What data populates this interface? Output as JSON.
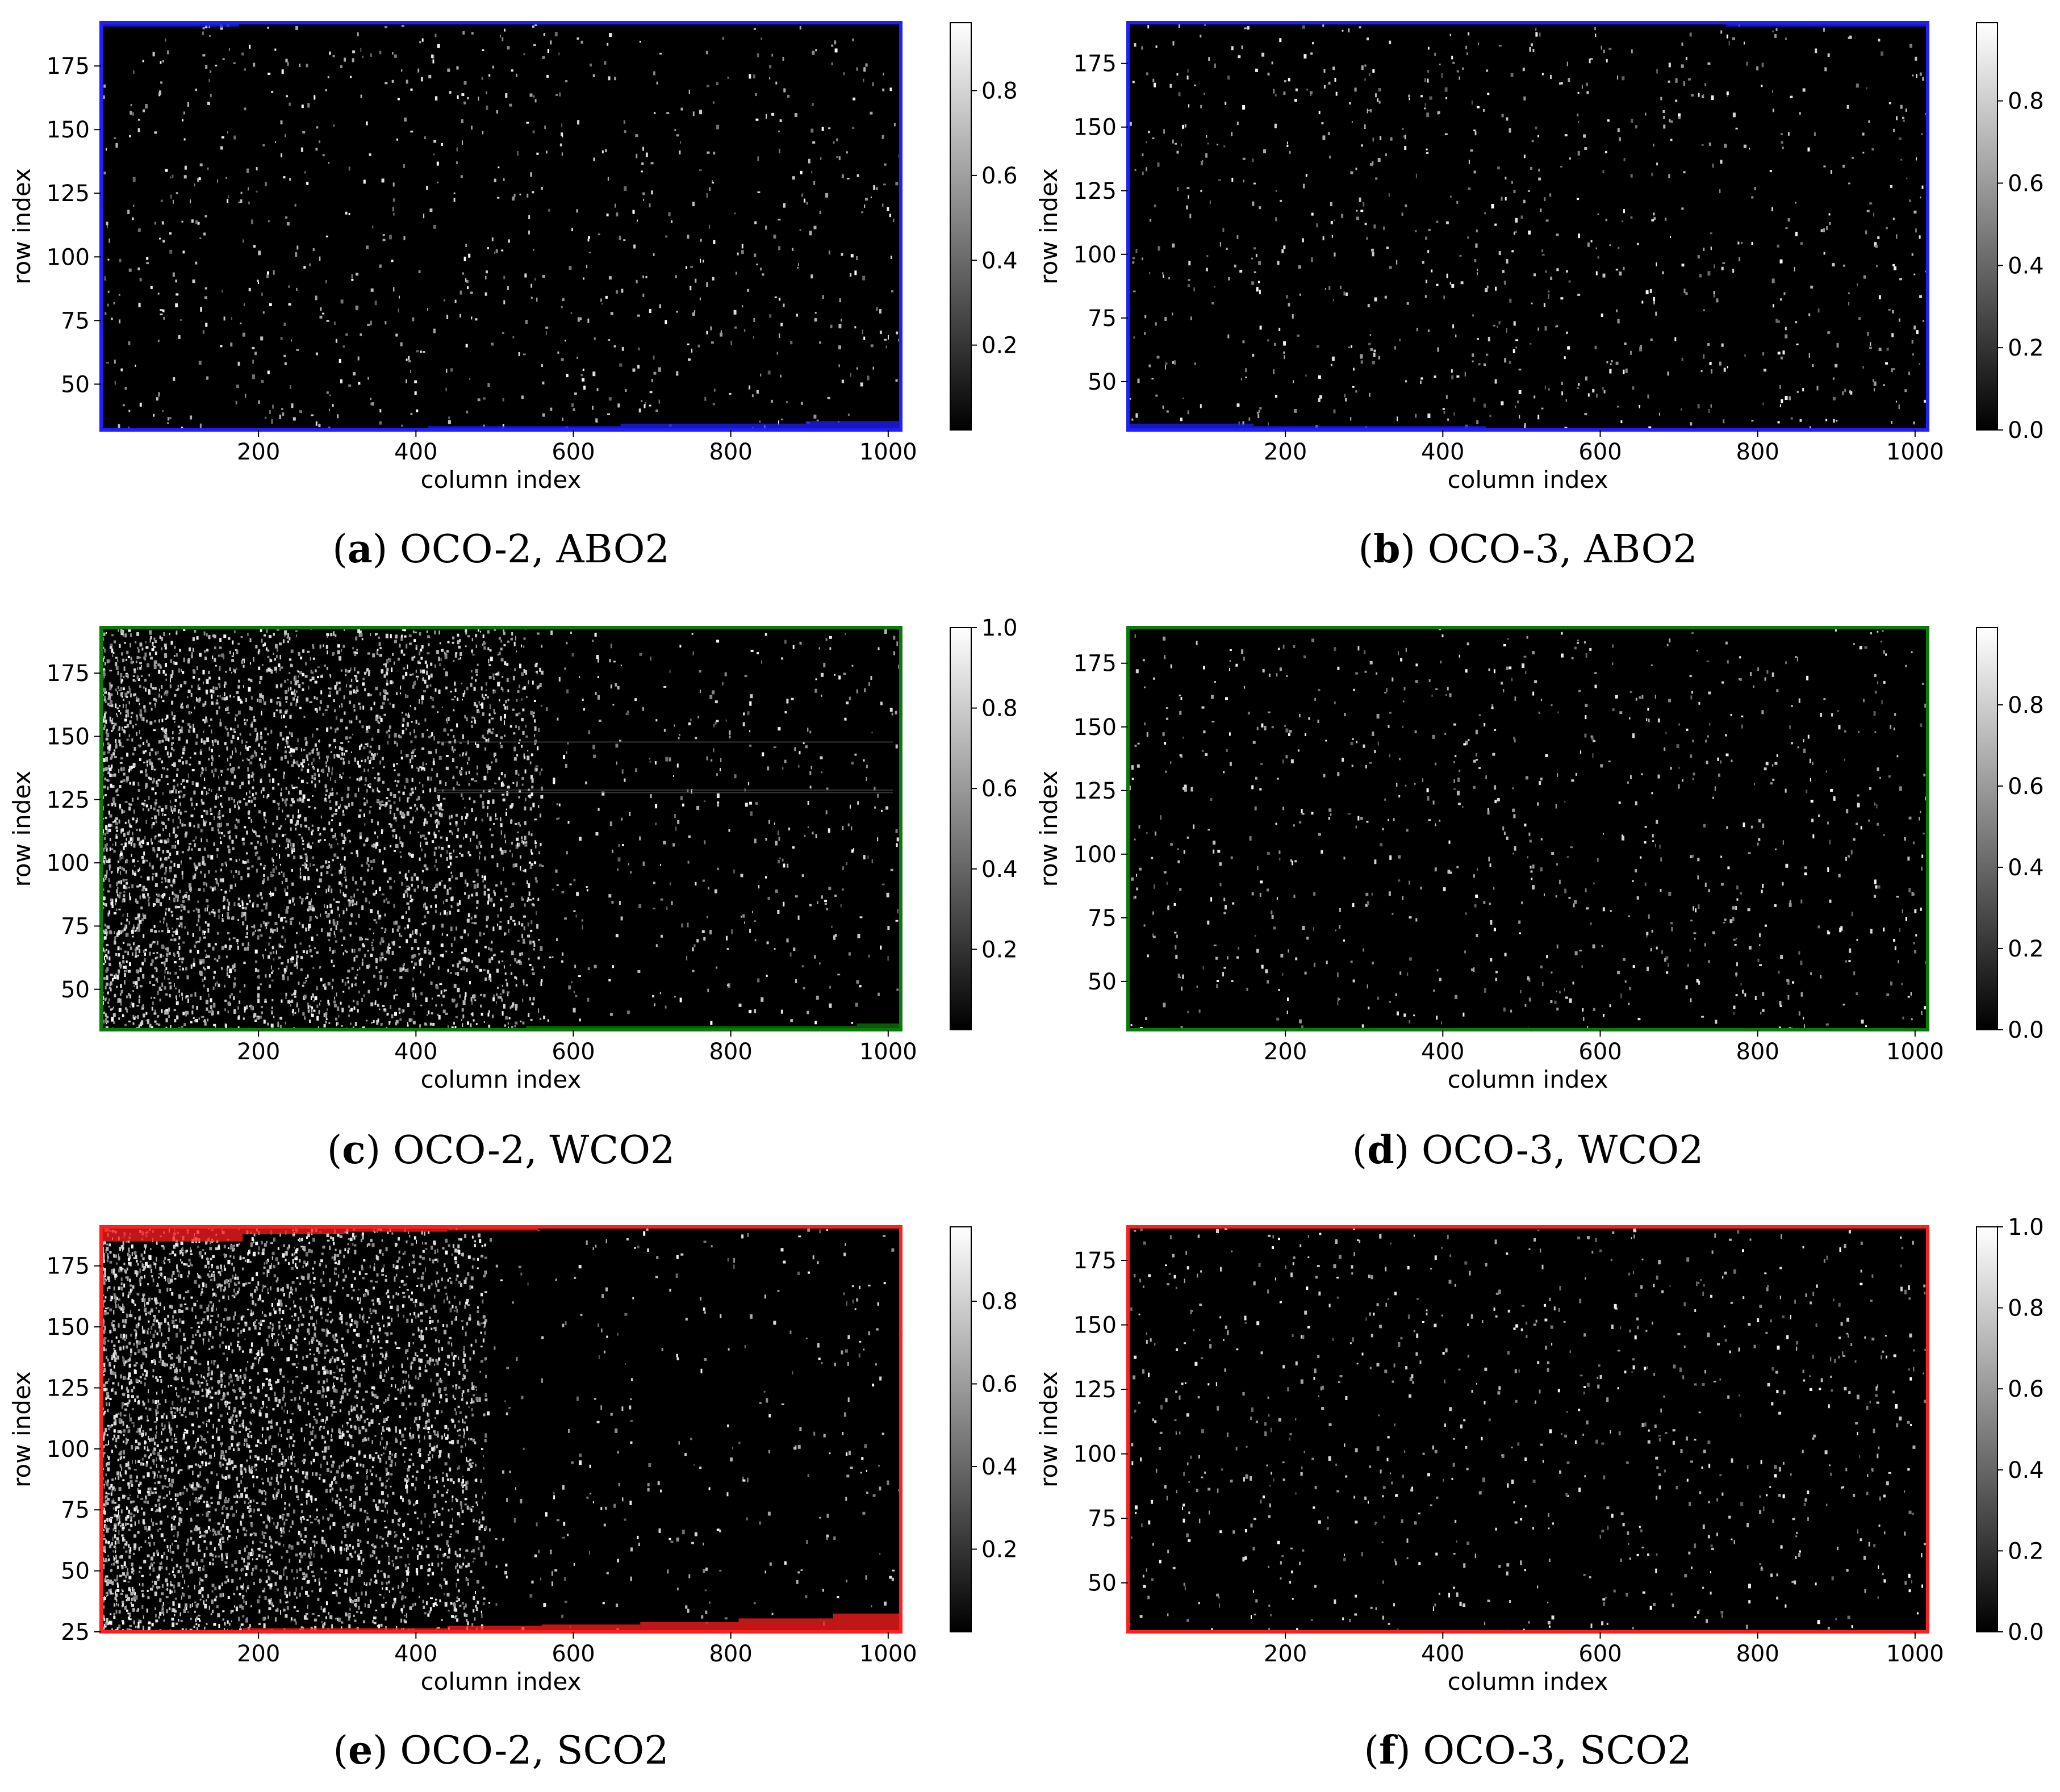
{
  "figure": {
    "panels": [
      {
        "caption_letter": "a",
        "caption_text": "OCO-2, ABO2",
        "frame_color": "#1f1fff",
        "xlabel": "column index",
        "ylabel": "row index",
        "xlim": [
          0,
          1016
        ],
        "ylim": [
          32,
          192
        ],
        "xticks": [
          200,
          400,
          600,
          800,
          1000
        ],
        "yticks": [
          50,
          75,
          100,
          125,
          150,
          175
        ],
        "colorbar": {
          "min": 0.0,
          "max": 0.96,
          "ticks": [
            "0.2",
            "0.4",
            "0.6",
            "0.8"
          ]
        },
        "bright_density": "low",
        "masked_bands": [
          {
            "edge": "top",
            "x0": 0,
            "x1": 175,
            "rows": 1.5
          },
          {
            "edge": "bottom",
            "x0": 415,
            "x1": 660,
            "rows": 1.5
          },
          {
            "edge": "bottom",
            "x0": 660,
            "x1": 895,
            "rows": 2.5
          },
          {
            "edge": "bottom",
            "x0": 895,
            "x1": 1016,
            "rows": 3.5
          }
        ]
      },
      {
        "caption_letter": "b",
        "caption_text": "OCO-3, ABO2",
        "frame_color": "#1f1fff",
        "xlabel": "column index",
        "ylabel": "row index",
        "xlim": [
          0,
          1016
        ],
        "ylim": [
          31,
          191
        ],
        "xticks": [
          200,
          400,
          600,
          800,
          1000
        ],
        "yticks": [
          50,
          75,
          100,
          125,
          150,
          175
        ],
        "colorbar": {
          "min": 0.0,
          "max": 0.99,
          "ticks": [
            "0.0",
            "0.2",
            "0.4",
            "0.6",
            "0.8"
          ]
        },
        "bright_density": "low",
        "masked_bands": [
          {
            "edge": "bottom",
            "x0": 0,
            "x1": 160,
            "rows": 2.5
          },
          {
            "edge": "bottom",
            "x0": 160,
            "x1": 455,
            "rows": 1.5
          },
          {
            "edge": "top",
            "x0": 760,
            "x1": 1016,
            "rows": 1.5
          }
        ]
      },
      {
        "caption_letter": "c",
        "caption_text": "OCO-2, WCO2",
        "frame_color": "#0a7a0a",
        "xlabel": "column index",
        "ylabel": "row index",
        "xlim": [
          0,
          1016
        ],
        "ylim": [
          34,
          193
        ],
        "xticks": [
          200,
          400,
          600,
          800,
          1000
        ],
        "yticks": [
          50,
          75,
          100,
          125,
          150,
          175
        ],
        "colorbar": {
          "min": 0.0,
          "max": 1.0,
          "ticks": [
            "0.2",
            "0.4",
            "0.6",
            "0.8",
            "1.0"
          ]
        },
        "bright_density": "high-left",
        "masked_bands": [
          {
            "edge": "bottom",
            "x0": 540,
            "x1": 960,
            "rows": 1.5
          },
          {
            "edge": "bottom",
            "x0": 960,
            "x1": 1016,
            "rows": 2.5
          }
        ]
      },
      {
        "caption_letter": "d",
        "caption_text": "OCO-3, WCO2",
        "frame_color": "#0a7a0a",
        "xlabel": "column index",
        "ylabel": "row index",
        "xlim": [
          0,
          1016
        ],
        "ylim": [
          31,
          189
        ],
        "xticks": [
          200,
          400,
          600,
          800,
          1000
        ],
        "yticks": [
          50,
          75,
          100,
          125,
          150,
          175
        ],
        "colorbar": {
          "min": 0.0,
          "max": 0.99,
          "ticks": [
            "0.0",
            "0.2",
            "0.4",
            "0.6",
            "0.8"
          ]
        },
        "bright_density": "low",
        "masked_bands": []
      },
      {
        "caption_letter": "e",
        "caption_text": "OCO-2, SCO2",
        "frame_color": "#ff1f1f",
        "xlabel": "column index",
        "ylabel": "row index",
        "xlim": [
          0,
          1016
        ],
        "ylim": [
          25,
          191
        ],
        "xticks": [
          200,
          400,
          600,
          800,
          1000
        ],
        "yticks": [
          25,
          50,
          75,
          100,
          125,
          150,
          175
        ],
        "colorbar": {
          "min": 0.0,
          "max": 0.98,
          "ticks": [
            "0.2",
            "0.4",
            "0.6",
            "0.8"
          ]
        },
        "bright_density": "very-high-left",
        "masked_bands": [
          {
            "edge": "top",
            "x0": 0,
            "x1": 180,
            "rows": 6
          },
          {
            "edge": "top",
            "x0": 180,
            "x1": 310,
            "rows": 3
          },
          {
            "edge": "top",
            "x0": 310,
            "x1": 440,
            "rows": 2
          },
          {
            "edge": "top",
            "x0": 440,
            "x1": 555,
            "rows": 1.5
          },
          {
            "edge": "bottom",
            "x0": 180,
            "x1": 440,
            "rows": 1.5
          },
          {
            "edge": "bottom",
            "x0": 440,
            "x1": 560,
            "rows": 2.5
          },
          {
            "edge": "bottom",
            "x0": 560,
            "x1": 685,
            "rows": 3
          },
          {
            "edge": "bottom",
            "x0": 685,
            "x1": 810,
            "rows": 4
          },
          {
            "edge": "bottom",
            "x0": 810,
            "x1": 930,
            "rows": 5.5
          },
          {
            "edge": "bottom",
            "x0": 930,
            "x1": 1016,
            "rows": 7.5
          }
        ]
      },
      {
        "caption_letter": "f",
        "caption_text": "OCO-3, SCO2",
        "frame_color": "#ff1f1f",
        "xlabel": "column index",
        "ylabel": "row index",
        "xlim": [
          0,
          1016
        ],
        "ylim": [
          31,
          188
        ],
        "xticks": [
          200,
          400,
          600,
          800,
          1000
        ],
        "yticks": [
          50,
          75,
          100,
          125,
          150,
          175
        ],
        "colorbar": {
          "min": 0.0,
          "max": 1.0,
          "ticks": [
            "0.0",
            "0.2",
            "0.4",
            "0.6",
            "0.8",
            "1.0"
          ]
        },
        "bright_density": "low",
        "masked_bands": []
      }
    ]
  }
}
